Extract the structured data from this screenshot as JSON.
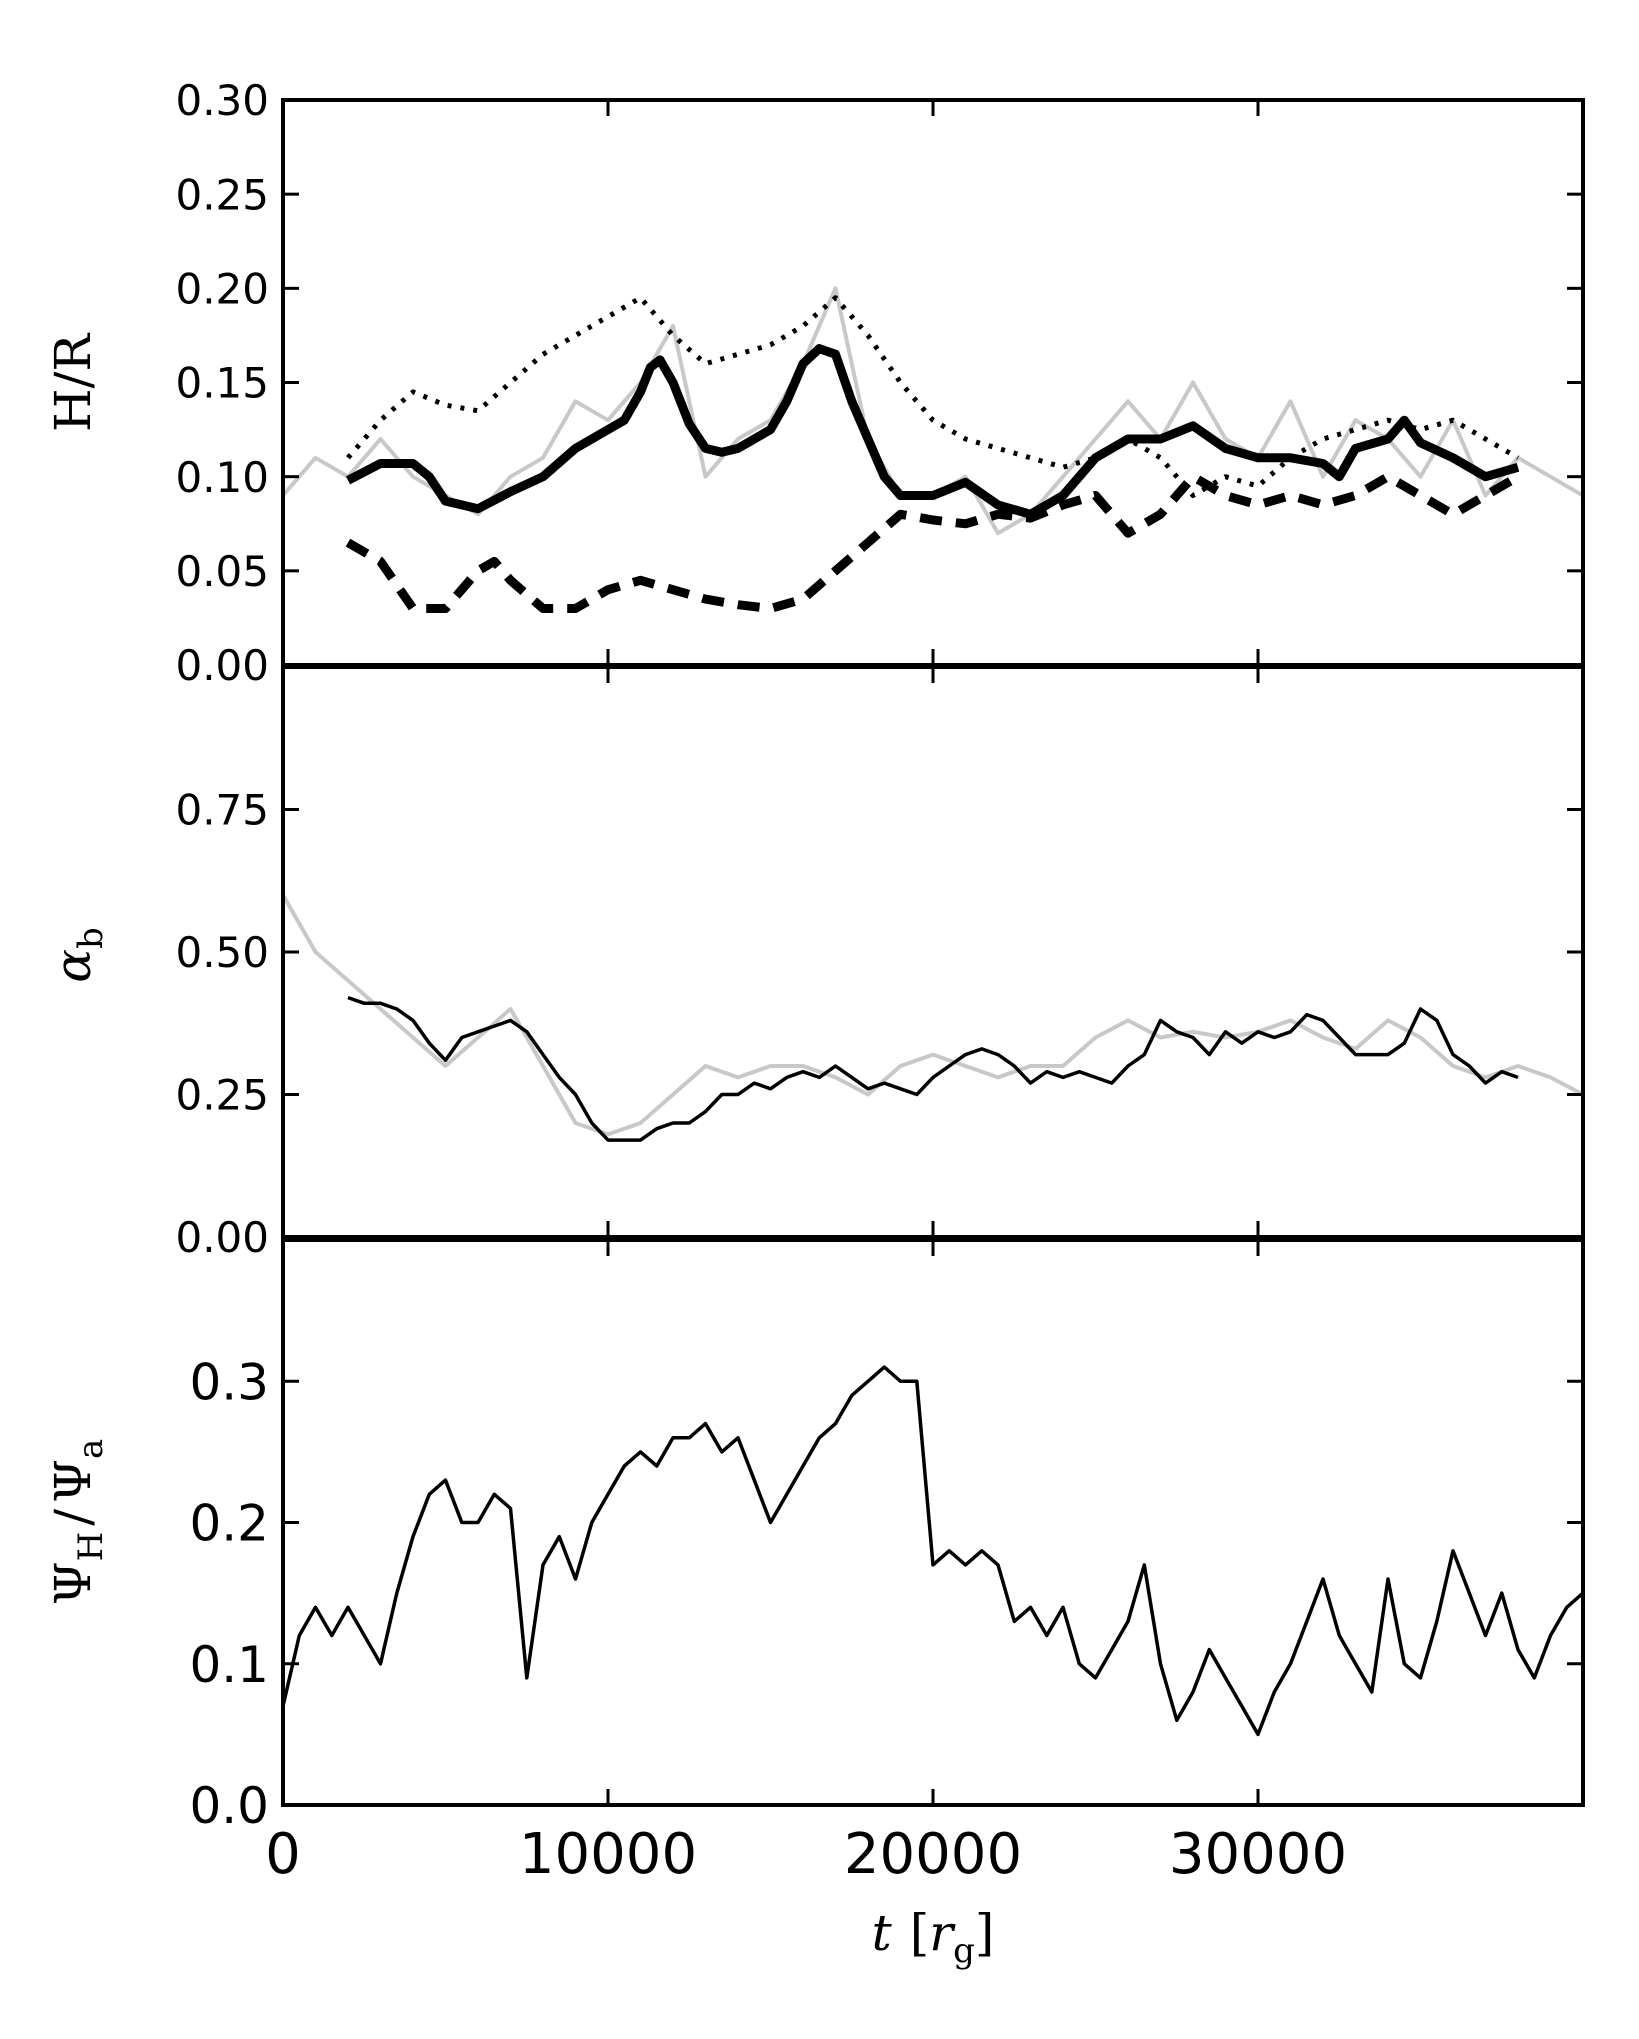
{
  "figure": {
    "xlabel_main": "t",
    "xlabel_bracket_open": "[",
    "xlabel_r": "r",
    "xlabel_sub": "g",
    "xlabel_bracket_close": "]",
    "x_ticks": [
      "0",
      "10000",
      "20000",
      "30000"
    ]
  },
  "panels": {
    "top": {
      "ylabel": "H/R",
      "y_ticks": [
        "0.00",
        "0.05",
        "0.10",
        "0.15",
        "0.20",
        "0.25",
        "0.30"
      ]
    },
    "mid": {
      "ylabel_main": "α",
      "ylabel_sub": "b",
      "y_ticks": [
        "0.00",
        "0.25",
        "0.50",
        "0.75"
      ]
    },
    "bottom": {
      "ylabel_psi1": "Ψ",
      "ylabel_sub1": "H",
      "ylabel_slash": "/",
      "ylabel_psi2": "Ψ",
      "ylabel_sub2": "a",
      "y_ticks": [
        "0.0",
        "0.1",
        "0.2",
        "0.3"
      ]
    }
  },
  "chart_data": [
    {
      "type": "line",
      "xlabel": "t [r_g]",
      "ylabel": "H/R",
      "xlim": [
        0,
        40000
      ],
      "ylim": [
        0,
        0.3
      ],
      "grid": false,
      "series": [
        {
          "style": "thin-gray",
          "color": "#c8c8c8",
          "x": [
            0,
            1000,
            2000,
            3000,
            4000,
            5000,
            6000,
            7000,
            8000,
            9000,
            10000,
            11000,
            12000,
            13000,
            14000,
            15000,
            16000,
            17000,
            18000,
            19000,
            20000,
            21000,
            22000,
            23000,
            24000,
            25000,
            26000,
            27000,
            28000,
            29000,
            30000,
            31000,
            32000,
            33000,
            34000,
            35000,
            36000,
            37000,
            38000,
            39000,
            40000
          ],
          "values": [
            0.09,
            0.11,
            0.1,
            0.12,
            0.1,
            0.09,
            0.08,
            0.1,
            0.11,
            0.14,
            0.13,
            0.15,
            0.18,
            0.1,
            0.12,
            0.13,
            0.16,
            0.2,
            0.12,
            0.09,
            0.09,
            0.1,
            0.07,
            0.08,
            0.1,
            0.12,
            0.14,
            0.12,
            0.15,
            0.12,
            0.11,
            0.14,
            0.1,
            0.13,
            0.12,
            0.1,
            0.13,
            0.09,
            0.11,
            0.1,
            0.09
          ]
        },
        {
          "style": "thick-solid",
          "color": "#000000",
          "x": [
            2000,
            3000,
            4000,
            4500,
            5000,
            5500,
            6000,
            7000,
            8000,
            9000,
            10000,
            10500,
            11000,
            11300,
            11600,
            12000,
            12500,
            13000,
            13500,
            14000,
            14500,
            15000,
            15500,
            16000,
            16500,
            17000,
            17500,
            18000,
            18500,
            19000,
            20000,
            21000,
            22000,
            23000,
            24000,
            25000,
            26000,
            27000,
            28000,
            29000,
            30000,
            31000,
            32000,
            32500,
            33000,
            34000,
            34500,
            35000,
            36000,
            37000,
            38000
          ],
          "values": [
            0.098,
            0.107,
            0.107,
            0.1,
            0.087,
            0.085,
            0.083,
            0.092,
            0.1,
            0.115,
            0.125,
            0.13,
            0.145,
            0.158,
            0.162,
            0.15,
            0.128,
            0.115,
            0.113,
            0.115,
            0.12,
            0.125,
            0.14,
            0.16,
            0.168,
            0.165,
            0.14,
            0.12,
            0.1,
            0.09,
            0.09,
            0.097,
            0.085,
            0.08,
            0.09,
            0.11,
            0.12,
            0.12,
            0.127,
            0.115,
            0.11,
            0.11,
            0.107,
            0.1,
            0.115,
            0.12,
            0.13,
            0.118,
            0.11,
            0.1,
            0.105
          ]
        },
        {
          "style": "thick-dashed",
          "color": "#000000",
          "x": [
            2000,
            3000,
            4000,
            5000,
            6000,
            6500,
            7000,
            8000,
            9000,
            10000,
            11000,
            12000,
            13000,
            14000,
            15000,
            16000,
            17000,
            18000,
            19000,
            20000,
            21000,
            22000,
            23000,
            24000,
            25000,
            26000,
            27000,
            28000,
            29000,
            30000,
            31000,
            32000,
            33000,
            34000,
            35000,
            36000,
            37000,
            38000
          ],
          "values": [
            0.065,
            0.055,
            0.03,
            0.03,
            0.05,
            0.055,
            0.045,
            0.03,
            0.03,
            0.04,
            0.045,
            0.04,
            0.035,
            0.032,
            0.03,
            0.035,
            0.05,
            0.065,
            0.08,
            0.077,
            0.075,
            0.08,
            0.078,
            0.085,
            0.09,
            0.07,
            0.08,
            0.1,
            0.09,
            0.085,
            0.09,
            0.085,
            0.09,
            0.1,
            0.09,
            0.08,
            0.09,
            0.1
          ]
        },
        {
          "style": "dotted",
          "color": "#000000",
          "x": [
            2000,
            3000,
            4000,
            5000,
            6000,
            7000,
            8000,
            9000,
            10000,
            11000,
            12000,
            13000,
            14000,
            15000,
            16000,
            17000,
            18000,
            19000,
            20000,
            21000,
            22000,
            23000,
            24000,
            25000,
            26000,
            27000,
            28000,
            29000,
            30000,
            31000,
            32000,
            33000,
            34000,
            35000,
            36000,
            37000,
            38000
          ],
          "values": [
            0.11,
            0.13,
            0.145,
            0.138,
            0.135,
            0.15,
            0.165,
            0.175,
            0.185,
            0.195,
            0.175,
            0.16,
            0.165,
            0.17,
            0.18,
            0.195,
            0.175,
            0.15,
            0.13,
            0.12,
            0.115,
            0.11,
            0.105,
            0.11,
            0.12,
            0.11,
            0.09,
            0.1,
            0.095,
            0.11,
            0.12,
            0.125,
            0.13,
            0.125,
            0.13,
            0.12,
            0.11
          ]
        }
      ]
    },
    {
      "type": "line",
      "xlabel": "t [r_g]",
      "ylabel": "α_b",
      "xlim": [
        0,
        40000
      ],
      "ylim": [
        0,
        1.0
      ],
      "grid": false,
      "series": [
        {
          "style": "thin-gray",
          "color": "#c8c8c8",
          "x": [
            0,
            1000,
            2000,
            3000,
            4000,
            5000,
            6000,
            7000,
            8000,
            9000,
            10000,
            11000,
            12000,
            13000,
            14000,
            15000,
            16000,
            17000,
            18000,
            19000,
            20000,
            21000,
            22000,
            23000,
            24000,
            25000,
            26000,
            27000,
            28000,
            29000,
            30000,
            31000,
            32000,
            33000,
            34000,
            35000,
            36000,
            37000,
            38000,
            39000,
            40000
          ],
          "values": [
            0.6,
            0.5,
            0.45,
            0.4,
            0.35,
            0.3,
            0.35,
            0.4,
            0.3,
            0.2,
            0.18,
            0.2,
            0.25,
            0.3,
            0.28,
            0.3,
            0.3,
            0.28,
            0.25,
            0.3,
            0.32,
            0.3,
            0.28,
            0.3,
            0.3,
            0.35,
            0.38,
            0.35,
            0.36,
            0.35,
            0.36,
            0.38,
            0.35,
            0.33,
            0.38,
            0.35,
            0.3,
            0.28,
            0.3,
            0.28,
            0.25
          ]
        },
        {
          "style": "thin-solid",
          "color": "#000000",
          "x": [
            2000,
            2500,
            3000,
            3500,
            4000,
            4500,
            5000,
            5500,
            6000,
            6500,
            7000,
            7500,
            8000,
            8500,
            9000,
            9500,
            10000,
            10500,
            11000,
            11500,
            12000,
            12500,
            13000,
            13500,
            14000,
            14500,
            15000,
            15500,
            16000,
            16500,
            17000,
            17500,
            18000,
            18500,
            19000,
            19500,
            20000,
            20500,
            21000,
            21500,
            22000,
            22500,
            23000,
            23500,
            24000,
            24500,
            25000,
            25500,
            26000,
            26500,
            27000,
            27500,
            28000,
            28500,
            29000,
            29500,
            30000,
            30500,
            31000,
            31500,
            32000,
            32500,
            33000,
            33500,
            34000,
            34500,
            35000,
            35500,
            36000,
            36500,
            37000,
            37500,
            38000
          ],
          "values": [
            0.42,
            0.41,
            0.41,
            0.4,
            0.38,
            0.34,
            0.31,
            0.35,
            0.36,
            0.37,
            0.38,
            0.36,
            0.32,
            0.28,
            0.25,
            0.2,
            0.17,
            0.17,
            0.17,
            0.19,
            0.2,
            0.2,
            0.22,
            0.25,
            0.25,
            0.27,
            0.26,
            0.28,
            0.29,
            0.28,
            0.3,
            0.28,
            0.26,
            0.27,
            0.26,
            0.25,
            0.28,
            0.3,
            0.32,
            0.33,
            0.32,
            0.3,
            0.27,
            0.29,
            0.28,
            0.29,
            0.28,
            0.27,
            0.3,
            0.32,
            0.38,
            0.36,
            0.35,
            0.32,
            0.36,
            0.34,
            0.36,
            0.35,
            0.36,
            0.39,
            0.38,
            0.35,
            0.32,
            0.32,
            0.32,
            0.34,
            0.4,
            0.38,
            0.32,
            0.3,
            0.27,
            0.29,
            0.28
          ]
        }
      ]
    },
    {
      "type": "line",
      "xlabel": "t [r_g]",
      "ylabel": "Ψ_H/Ψ_a",
      "xlim": [
        0,
        40000
      ],
      "ylim": [
        0,
        0.4
      ],
      "grid": false,
      "series": [
        {
          "style": "thin-solid",
          "color": "#000000",
          "x": [
            0,
            500,
            1000,
            1500,
            2000,
            2500,
            3000,
            3500,
            4000,
            4500,
            5000,
            5500,
            6000,
            6500,
            7000,
            7500,
            8000,
            8500,
            9000,
            9500,
            10000,
            10500,
            11000,
            11500,
            12000,
            12500,
            13000,
            13500,
            14000,
            14500,
            15000,
            15500,
            16000,
            16500,
            17000,
            17500,
            18000,
            18500,
            19000,
            19500,
            20000,
            20500,
            21000,
            21500,
            22000,
            22500,
            23000,
            23500,
            24000,
            24500,
            25000,
            25500,
            26000,
            26500,
            27000,
            27500,
            28000,
            28500,
            29000,
            29500,
            30000,
            30500,
            31000,
            31500,
            32000,
            32500,
            33000,
            33500,
            34000,
            34500,
            35000,
            35500,
            36000,
            36500,
            37000,
            37500,
            38000,
            38500,
            39000,
            39500,
            40000
          ],
          "values": [
            0.07,
            0.12,
            0.14,
            0.12,
            0.14,
            0.12,
            0.1,
            0.15,
            0.19,
            0.22,
            0.23,
            0.2,
            0.2,
            0.22,
            0.21,
            0.09,
            0.17,
            0.19,
            0.16,
            0.2,
            0.22,
            0.24,
            0.25,
            0.24,
            0.26,
            0.26,
            0.27,
            0.25,
            0.26,
            0.23,
            0.2,
            0.22,
            0.24,
            0.26,
            0.27,
            0.29,
            0.3,
            0.31,
            0.3,
            0.3,
            0.17,
            0.18,
            0.17,
            0.18,
            0.17,
            0.13,
            0.14,
            0.12,
            0.14,
            0.1,
            0.09,
            0.11,
            0.13,
            0.17,
            0.1,
            0.06,
            0.08,
            0.11,
            0.09,
            0.07,
            0.05,
            0.08,
            0.1,
            0.13,
            0.16,
            0.12,
            0.1,
            0.08,
            0.16,
            0.1,
            0.09,
            0.13,
            0.18,
            0.15,
            0.12,
            0.15,
            0.11,
            0.09,
            0.12,
            0.14,
            0.15
          ]
        }
      ]
    }
  ]
}
